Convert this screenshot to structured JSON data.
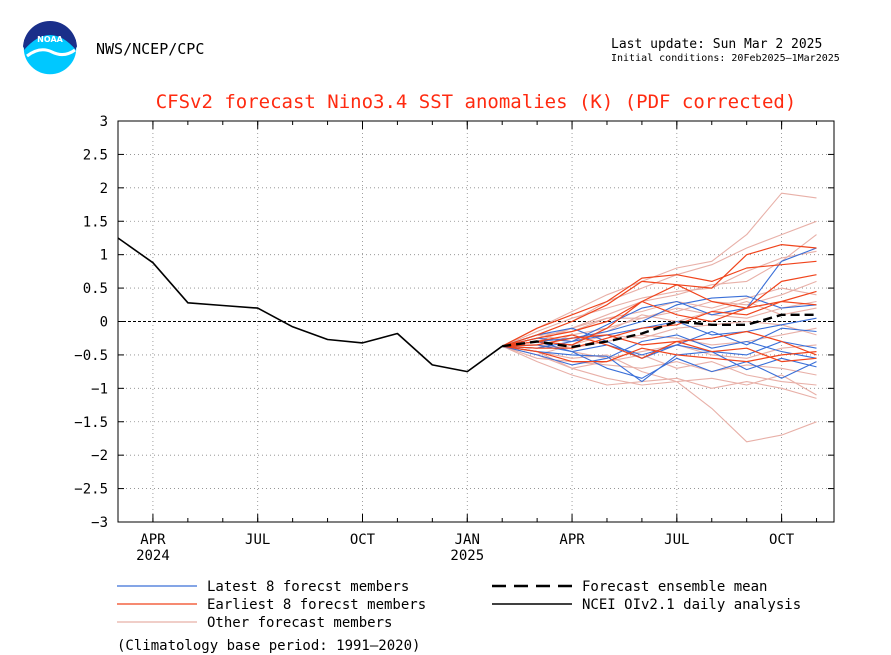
{
  "header": {
    "org": "NWS/NCEP/CPC",
    "last_update": "Last update: Sun Mar 2 2025",
    "initial_conditions": "Initial conditions: 20Feb2025—1Mar2025",
    "logo_text": "NOAA"
  },
  "colors": {
    "title": "#ff2a10",
    "latest": "#3a6fd8",
    "earliest": "#f0441c",
    "other": "#e8b0a8",
    "analysis": "#000000",
    "mean": "#000000"
  },
  "chart_data": {
    "type": "line",
    "title": "CFSv2 forecast Nino3.4 SST anomalies (K) (PDF corrected)",
    "xlabel": "",
    "ylabel": "",
    "ylim": [
      -3,
      3
    ],
    "xlim": [
      0,
      20.5
    ],
    "grid": true,
    "y_ticks": [
      {
        "value": 3,
        "label": "3"
      },
      {
        "value": 2.5,
        "label": "2.5"
      },
      {
        "value": 2,
        "label": "2"
      },
      {
        "value": 1.5,
        "label": "1.5"
      },
      {
        "value": 1,
        "label": "1"
      },
      {
        "value": 0.5,
        "label": "0.5"
      },
      {
        "value": 0,
        "label": "0"
      },
      {
        "value": -0.5,
        "label": "−0.5"
      },
      {
        "value": -1,
        "label": "−1"
      },
      {
        "value": -1.5,
        "label": "−1.5"
      },
      {
        "value": -2,
        "label": "−2"
      },
      {
        "value": -2.5,
        "label": "−2.5"
      },
      {
        "value": -3,
        "label": "−3"
      }
    ],
    "x_ticks": [
      {
        "value": 1,
        "label": "APR",
        "sublabel": "2024"
      },
      {
        "value": 4,
        "label": "JUL",
        "sublabel": ""
      },
      {
        "value": 7,
        "label": "OCT",
        "sublabel": ""
      },
      {
        "value": 10,
        "label": "JAN",
        "sublabel": "2025"
      },
      {
        "value": 13,
        "label": "APR",
        "sublabel": ""
      },
      {
        "value": 16,
        "label": "JUL",
        "sublabel": ""
      },
      {
        "value": 19,
        "label": "OCT",
        "sublabel": ""
      }
    ],
    "x_minor_ticks": [
      0,
      1,
      2,
      3,
      4,
      5,
      6,
      7,
      8,
      9,
      10,
      11,
      12,
      13,
      14,
      15,
      16,
      17,
      18,
      19,
      20
    ],
    "analysis": {
      "name": "NCEI OIv2.1 daily analysis",
      "x": [
        0,
        1,
        2,
        3,
        4,
        5,
        6,
        7,
        8,
        9,
        10,
        11
      ],
      "y": [
        1.25,
        0.88,
        0.28,
        0.24,
        0.2,
        -0.08,
        -0.27,
        -0.32,
        -0.18,
        -0.65,
        -0.75,
        -0.37
      ]
    },
    "ensemble_mean": {
      "name": "Forecast ensemble mean",
      "x": [
        11,
        12,
        13,
        14,
        15,
        16,
        17,
        18,
        19,
        20
      ],
      "y": [
        -0.37,
        -0.3,
        -0.38,
        -0.3,
        -0.18,
        0.0,
        -0.05,
        -0.05,
        0.1,
        0.1
      ]
    },
    "members_x": [
      11,
      12,
      13,
      14,
      15,
      16,
      17,
      18,
      19,
      20
    ],
    "latest_members": {
      "name": "Latest 8 forecst members",
      "series": [
        [
          -0.37,
          -0.45,
          -0.5,
          -0.52,
          -0.9,
          -0.5,
          -0.45,
          -0.72,
          -0.55,
          -0.68
        ],
        [
          -0.37,
          -0.3,
          -0.25,
          -0.15,
          0.0,
          0.25,
          0.35,
          0.38,
          0.2,
          0.25
        ],
        [
          -0.37,
          -0.5,
          -0.65,
          -0.55,
          -0.3,
          -0.2,
          -0.4,
          -0.3,
          -0.45,
          -0.55
        ],
        [
          -0.37,
          -0.2,
          -0.1,
          -0.3,
          -0.55,
          -0.35,
          -0.45,
          -0.5,
          -0.3,
          -0.4
        ],
        [
          -0.37,
          -0.35,
          -0.45,
          -0.7,
          -0.85,
          -0.55,
          -0.75,
          -0.6,
          -0.85,
          -0.6
        ],
        [
          -0.37,
          -0.25,
          -0.3,
          -0.05,
          0.2,
          0.3,
          0.1,
          0.2,
          0.9,
          1.1
        ],
        [
          -0.37,
          -0.4,
          -0.3,
          -0.2,
          -0.1,
          0.0,
          -0.2,
          -0.15,
          -0.05,
          0.05
        ],
        [
          -0.37,
          -0.3,
          -0.45,
          -0.35,
          -0.5,
          -0.35,
          -0.15,
          -0.35,
          -0.1,
          -0.15
        ]
      ]
    },
    "earliest_members": {
      "name": "Earliest 8 forecst members",
      "series": [
        [
          -0.37,
          -0.1,
          0.1,
          0.3,
          0.65,
          0.7,
          0.6,
          0.8,
          0.85,
          0.9
        ],
        [
          -0.37,
          -0.2,
          0.0,
          0.25,
          0.6,
          0.55,
          0.5,
          1.0,
          1.15,
          1.1
        ],
        [
          -0.37,
          -0.3,
          -0.35,
          -0.1,
          0.3,
          0.1,
          0.0,
          0.2,
          0.6,
          0.7
        ],
        [
          -0.37,
          -0.35,
          -0.25,
          -0.2,
          -0.35,
          -0.3,
          -0.25,
          -0.15,
          -0.3,
          -0.5
        ],
        [
          -0.37,
          -0.45,
          -0.6,
          -0.6,
          -0.4,
          -0.5,
          -0.55,
          -0.6,
          -0.5,
          -0.45
        ],
        [
          -0.37,
          -0.25,
          -0.15,
          0.0,
          0.3,
          0.55,
          0.3,
          0.2,
          0.3,
          0.25
        ],
        [
          -0.37,
          -0.4,
          -0.4,
          -0.25,
          -0.1,
          -0.05,
          0.15,
          0.1,
          0.3,
          0.45
        ],
        [
          -0.37,
          -0.3,
          -0.2,
          -0.35,
          -0.55,
          -0.3,
          -0.45,
          -0.4,
          -0.6,
          -0.55
        ]
      ]
    },
    "other_members": {
      "name": "Other forecast members",
      "series": [
        [
          -0.37,
          -0.1,
          0.15,
          0.4,
          0.6,
          0.8,
          0.9,
          1.3,
          1.92,
          1.85
        ],
        [
          -0.37,
          -0.2,
          0.0,
          0.3,
          0.5,
          0.7,
          0.85,
          1.1,
          1.3,
          1.5
        ],
        [
          -0.37,
          -0.5,
          -0.7,
          -0.85,
          -0.95,
          -0.9,
          -1.3,
          -1.8,
          -1.7,
          -1.5
        ],
        [
          -0.37,
          -0.6,
          -0.8,
          -0.95,
          -0.9,
          -0.85,
          -1.0,
          -0.9,
          -1.0,
          -1.15
        ],
        [
          -0.37,
          -0.3,
          -0.1,
          0.1,
          0.3,
          0.4,
          0.55,
          0.6,
          0.9,
          1.3
        ],
        [
          -0.37,
          -0.45,
          -0.55,
          -0.5,
          -0.75,
          -0.9,
          -0.85,
          -0.95,
          -0.8,
          -1.1
        ],
        [
          -0.37,
          -0.2,
          -0.15,
          0.05,
          0.15,
          0.3,
          0.2,
          0.35,
          0.5,
          0.4
        ],
        [
          -0.37,
          -0.35,
          -0.4,
          -0.3,
          -0.2,
          -0.25,
          -0.35,
          -0.3,
          -0.2,
          -0.1
        ],
        [
          -0.37,
          -0.55,
          -0.6,
          -0.65,
          -0.7,
          -0.6,
          -0.75,
          -0.65,
          -0.7,
          -0.8
        ],
        [
          -0.37,
          -0.25,
          -0.1,
          0.05,
          0.05,
          0.15,
          0.3,
          0.25,
          0.4,
          0.6
        ],
        [
          -0.37,
          -0.4,
          -0.2,
          -0.1,
          0.05,
          0.2,
          0.1,
          0.05,
          0.2,
          0.3
        ],
        [
          -0.37,
          -0.3,
          -0.45,
          -0.55,
          -0.45,
          -0.35,
          -0.5,
          -0.55,
          -0.4,
          -0.35
        ],
        [
          -0.37,
          -0.15,
          0.05,
          0.2,
          0.35,
          0.45,
          0.5,
          0.75,
          0.95,
          1.05
        ],
        [
          -0.37,
          -0.5,
          -0.35,
          -0.2,
          -0.25,
          -0.1,
          -0.05,
          0.0,
          -0.05,
          -0.2
        ],
        [
          -0.37,
          -0.2,
          -0.3,
          -0.15,
          0.1,
          0.0,
          0.15,
          0.3,
          0.1,
          0.2
        ],
        [
          -0.37,
          -0.45,
          -0.7,
          -0.6,
          -0.5,
          -0.7,
          -0.6,
          -0.8,
          -0.9,
          -0.95
        ]
      ]
    },
    "legend": [
      {
        "key": "latest",
        "label": "Latest 8 forecst members",
        "style": "solid"
      },
      {
        "key": "earliest",
        "label": "Earliest 8 forecst members",
        "style": "solid"
      },
      {
        "key": "other",
        "label": "Other forecast members",
        "style": "solid"
      },
      {
        "key": "mean",
        "label": "Forecast ensemble mean",
        "style": "dashed"
      },
      {
        "key": "analysis",
        "label": "NCEI OIv2.1 daily analysis",
        "style": "solid"
      }
    ],
    "footnote": "(Climatology base period: 1991—2020)"
  }
}
